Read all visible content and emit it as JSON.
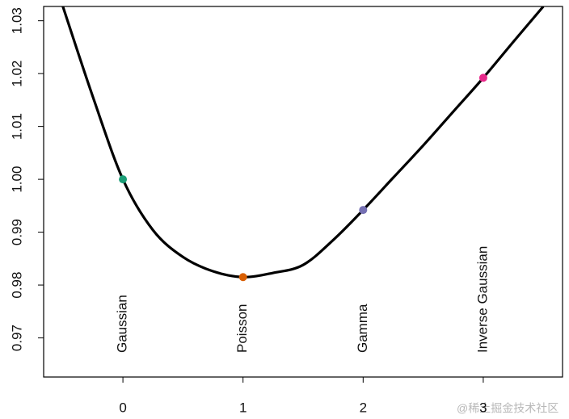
{
  "chart_data": {
    "type": "line",
    "series": [
      {
        "color": "#000000",
        "x": [
          -0.5,
          -0.25,
          0,
          0.25,
          0.5,
          0.75,
          1,
          1.25,
          1.5,
          1.75,
          2,
          2.25,
          2.5,
          2.75,
          3,
          3.25,
          3.5
        ],
        "values": [
          1.0327,
          1.0156,
          1.0,
          0.9904,
          0.9853,
          0.9826,
          0.9815,
          0.9823,
          0.9838,
          0.9885,
          0.9942,
          1.0003,
          1.0064,
          1.0128,
          1.0192,
          1.026,
          1.0327
        ]
      }
    ],
    "markers": {
      "x": [
        0,
        1,
        2,
        3
      ],
      "values": [
        1.0,
        0.9815,
        0.9942,
        1.0192
      ],
      "colors": [
        "#1b9e77",
        "#d95f02",
        "#7570b3",
        "#e7298a"
      ],
      "labels": [
        "Gaussian",
        "Poisson",
        "Gamma",
        "Inverse Gaussian"
      ]
    },
    "xlim": [
      -0.66,
      3.66
    ],
    "ylim": [
      0.9626,
      1.0327
    ],
    "xticks": [
      0,
      1,
      2,
      3
    ],
    "yticks": [
      0.97,
      0.98,
      0.99,
      {
        "value": 1.0,
        "label": "1.00"
      },
      1.01,
      1.02,
      1.03
    ],
    "watermark": "@稀土掘金技术社区"
  }
}
